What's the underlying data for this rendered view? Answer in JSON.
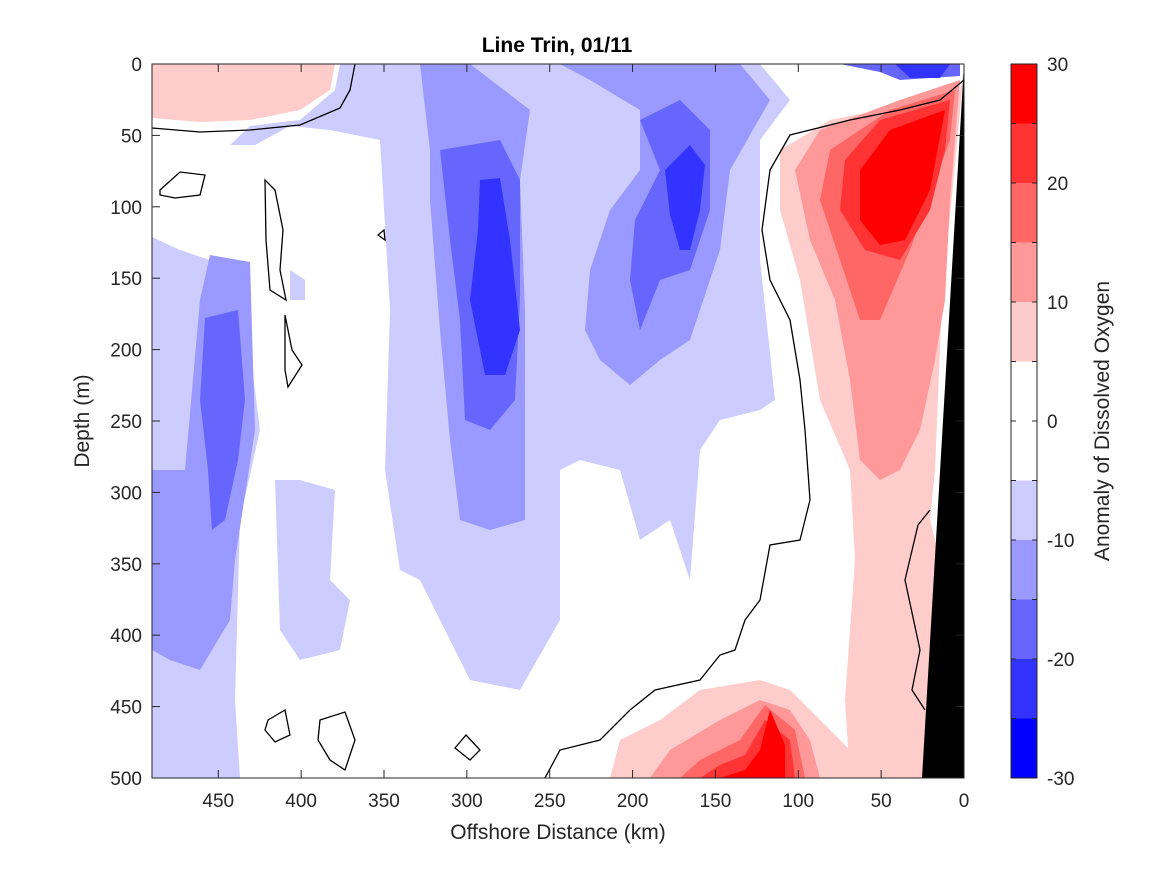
{
  "chart_data": {
    "type": "heatmap",
    "title": "Line Trin, 01/11",
    "xlabel": "Offshore Distance (km)",
    "ylabel": "Depth (m)",
    "colorbar_label": "Anomaly of Dissolved Oxygen",
    "xlim": [
      490,
      0
    ],
    "ylim": [
      0,
      500
    ],
    "x_reversed": true,
    "y_reversed": true,
    "x_ticks": [
      450,
      400,
      350,
      300,
      250,
      200,
      150,
      100,
      50,
      0
    ],
    "y_ticks": [
      0,
      50,
      100,
      150,
      200,
      250,
      300,
      350,
      400,
      450,
      500
    ],
    "colorbar_ticks": [
      30,
      20,
      10,
      0,
      -10,
      -20,
      -30
    ],
    "color_levels": [
      -30,
      -25,
      -20,
      -15,
      -10,
      -5,
      0,
      5,
      10,
      15,
      20,
      25,
      30
    ],
    "colormap": [
      "#0000ff",
      "#3333ff",
      "#6666ff",
      "#9999ff",
      "#ccccff",
      "#ffffff",
      "#ffffff",
      "#ffcccc",
      "#ff9999",
      "#ff6666",
      "#ff3333",
      "#ff0000"
    ],
    "bathymetry_color": "#000000",
    "zero_contour_color": "#000000",
    "approx_features": [
      {
        "x": 280,
        "y": 170,
        "value": -27
      },
      {
        "x": 160,
        "y": 110,
        "value": -22
      },
      {
        "x": 440,
        "y": 250,
        "value": -20
      },
      {
        "x": 40,
        "y": 100,
        "value": 28
      },
      {
        "x": 110,
        "y": 480,
        "value": 27
      },
      {
        "x": 140,
        "y": 500,
        "value": 22
      },
      {
        "x": 440,
        "y": 10,
        "value": 8
      },
      {
        "x": 45,
        "y": 5,
        "value": -15
      },
      {
        "x": 50,
        "y": 300,
        "value": 8
      }
    ]
  }
}
